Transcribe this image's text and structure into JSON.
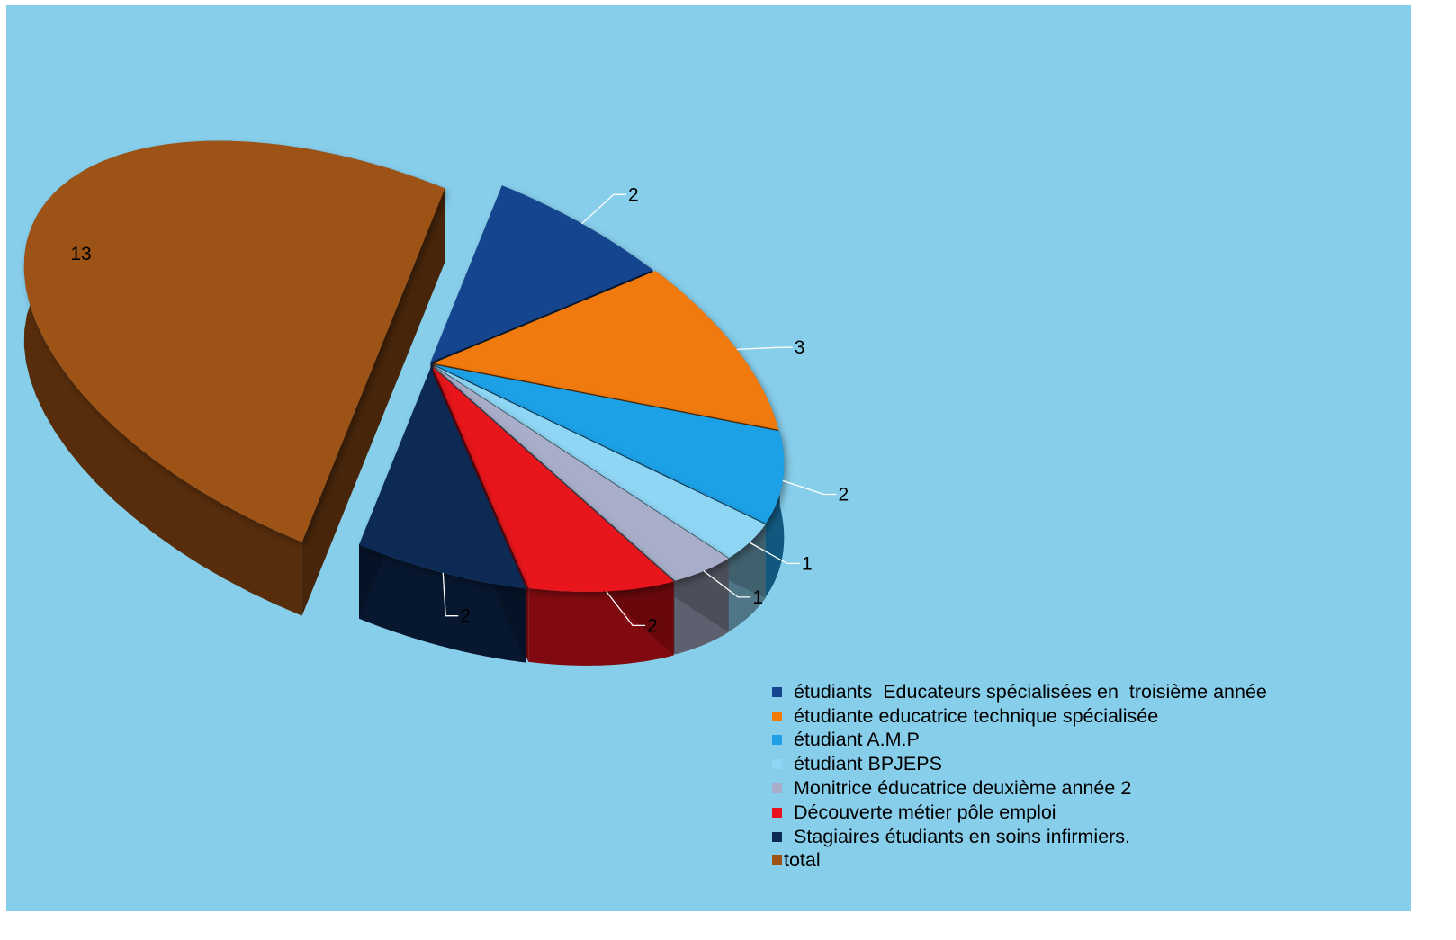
{
  "chart_data": {
    "type": "pie",
    "categories": [
      "étudiants  Educateurs spécialisées en  troisième année",
      "étudiante educatrice technique spécialisée",
      "étudiant A.M.P",
      "étudiant BPJEPS",
      "Monitrice éducatrice deuxième année 2",
      "Découverte métier pôle emploi",
      "Stagiaires étudiants en soins infirmiers.",
      "total"
    ],
    "values": [
      2,
      3,
      2,
      1,
      1,
      2,
      2,
      13
    ],
    "data_labels": [
      "2",
      "3",
      "2",
      "1",
      "1",
      "2",
      "2",
      "13"
    ],
    "colors": [
      "#17458F",
      "#F07A0A",
      "#1FA0E6",
      "#8FD6F5",
      "#A8AEC9",
      "#E8121C",
      "#0D2A55",
      "#9E5216"
    ],
    "style": "3d exploded pie",
    "legend_position": "bottom-right",
    "background": "#87CEEB"
  }
}
